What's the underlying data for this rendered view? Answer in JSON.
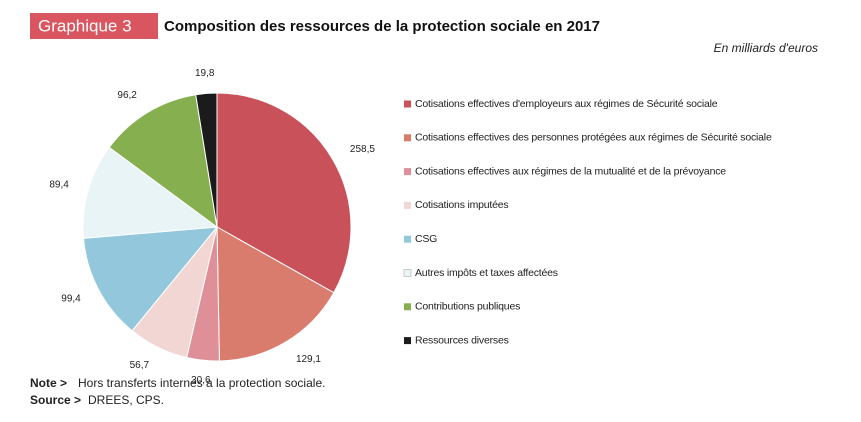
{
  "chart_data": {
    "type": "pie",
    "badge": "Graphique 3",
    "title": "Composition des ressources de la protection sociale en 2017",
    "subtitle": "En milliards d'euros",
    "categories": [
      "Cotisations effectives d'employeurs aux régimes de Sécurité sociale",
      "Cotisations effectives des personnes protégées aux régimes de Sécurité sociale",
      "Cotisations effectives aux régimes de la mutualité et de la prévoyance",
      "Cotisations imputées",
      "CSG",
      "Autres impôts et taxes affectées",
      "Contributions publiques",
      "Ressources diverses"
    ],
    "values": [
      258.5,
      129.1,
      30.6,
      56.7,
      99.4,
      89.4,
      96.2,
      19.8
    ],
    "value_labels": [
      "258,5",
      "129,1",
      "30,6",
      "56,7",
      "99,4",
      "89,4",
      "96,2",
      "19,8"
    ],
    "colors": [
      "#c9515a",
      "#d97c6d",
      "#df8f98",
      "#f2d6d3",
      "#93c8dc",
      "#e9f4f7",
      "#86b04f",
      "#1b1b1b"
    ],
    "note_label": "Note >",
    "note": "Hors transferts internes à la protection sociale.",
    "source_label": "Source >",
    "source": "DREES, CPS."
  }
}
